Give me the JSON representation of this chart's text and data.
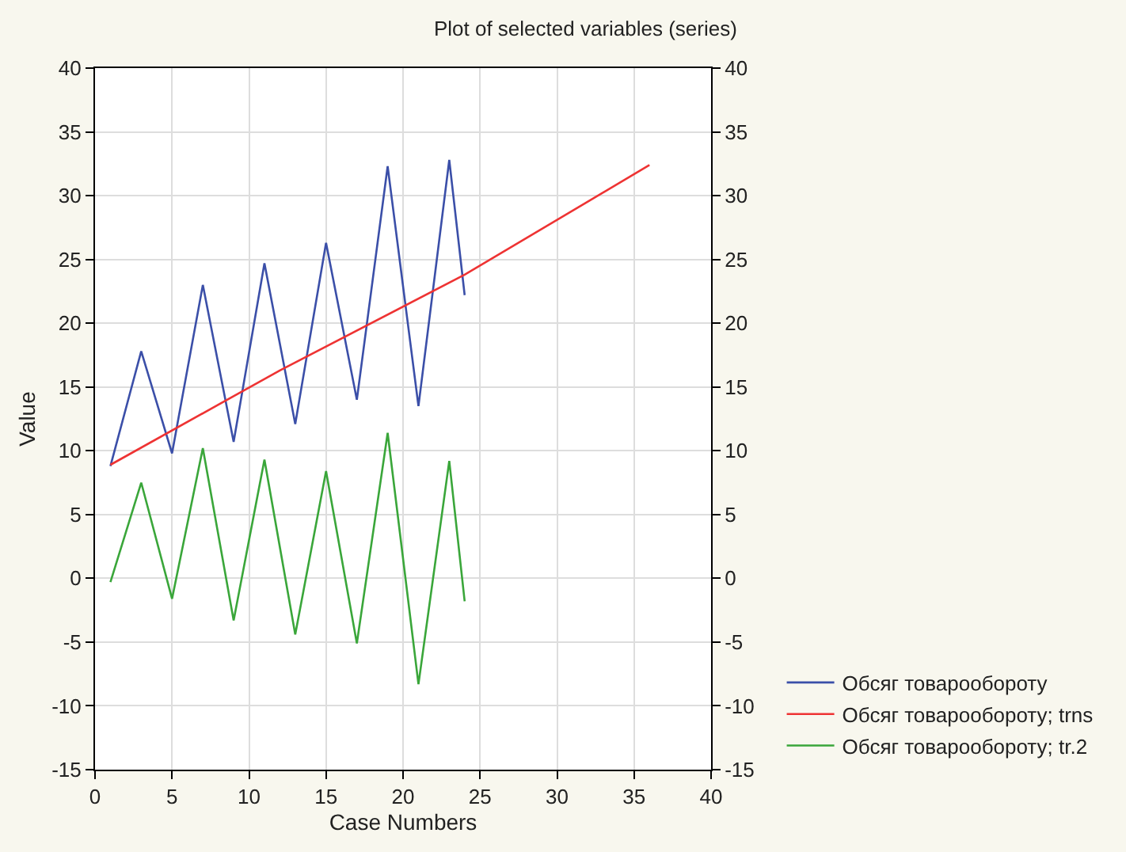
{
  "chart_data": {
    "type": "line",
    "title": "Plot of selected variables (series)",
    "xlabel": "Case Numbers",
    "ylabel": "Value",
    "xlim": [
      0,
      40
    ],
    "xticks": [
      0,
      5,
      10,
      15,
      20,
      25,
      30,
      35,
      40
    ],
    "ylim": [
      -15,
      40
    ],
    "yticks": [
      -15,
      -10,
      -5,
      0,
      5,
      10,
      15,
      20,
      25,
      30,
      35,
      40
    ],
    "y2lim": [
      -15,
      40
    ],
    "y2ticks": [
      -15,
      -10,
      -5,
      0,
      5,
      10,
      15,
      20,
      25,
      30,
      35,
      40
    ],
    "grid": true,
    "legend": "bottom right",
    "marker": "none",
    "line_style": "solid",
    "series": [
      {
        "name": "Обсяг товарообороту",
        "color": "#3b4fa8",
        "x": [
          1,
          3,
          5,
          7,
          9,
          11,
          13,
          15,
          17,
          19,
          21,
          23,
          24
        ],
        "values": [
          8.8,
          17.8,
          9.8,
          23,
          10.7,
          24.7,
          12.1,
          26.3,
          14,
          32.3,
          13.5,
          32.8,
          22.2
        ]
      },
      {
        "name": "Обсяг товарообороту; trns",
        "color": "#ee3333",
        "x": [
          1,
          12,
          24,
          36
        ],
        "values": [
          8.9,
          16.3,
          23.8,
          32.4
        ]
      },
      {
        "name": "Обсяг товарообороту; tr.2",
        "color": "#3aa63a",
        "x": [
          1,
          3,
          5,
          7,
          9,
          11,
          13,
          15,
          17,
          19,
          21,
          23,
          24
        ],
        "values": [
          -0.3,
          7.5,
          -1.6,
          10.2,
          -3.3,
          9.3,
          -4.4,
          8.4,
          -5.1,
          11.4,
          -8.3,
          9.2,
          -1.8
        ]
      }
    ]
  }
}
